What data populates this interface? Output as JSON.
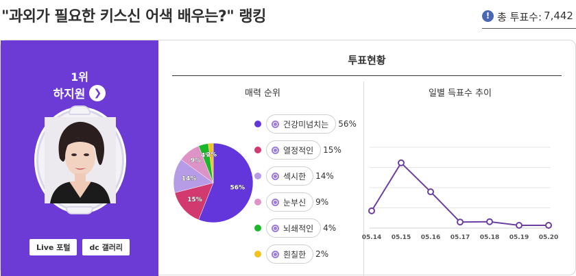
{
  "header": {
    "title": "\"과외가 필요한 키스신 어색 배우는?\" 랭킹",
    "total_label": "총 투표수:",
    "total_value": "7,442"
  },
  "winner": {
    "rank": "1위",
    "name": "하지원",
    "links": [
      "Live 포털",
      "dc 갤러리"
    ]
  },
  "section_title": "투표현황",
  "pie_title": "매력 순위",
  "line_title": "일별 득표수 추이",
  "chart_data": [
    {
      "type": "pie",
      "title": "매력 순위",
      "categories": [
        "건강미넘치는",
        "열정적인",
        "섹시한",
        "눈부신",
        "뇌쇄적인",
        "흰칠한"
      ],
      "values": [
        56,
        15,
        14,
        9,
        4,
        2
      ],
      "labels": [
        "56%",
        "15%",
        "14%",
        "9%",
        "4%",
        "2%"
      ],
      "colors": [
        "#6236db",
        "#d2396e",
        "#b69ce6",
        "#de93c7",
        "#1cb62a",
        "#f3c21e"
      ]
    },
    {
      "type": "line",
      "title": "일별 득표수 추이",
      "x": [
        "05.14",
        "05.15",
        "05.16",
        "05.17",
        "05.18",
        "05.19",
        "05.20"
      ],
      "values": [
        0.22,
        0.95,
        0.51,
        0.05,
        0.055,
        0.0,
        0.0
      ],
      "ylim": [
        0,
        1
      ],
      "grid": true,
      "color": "#6b3fa0"
    }
  ]
}
